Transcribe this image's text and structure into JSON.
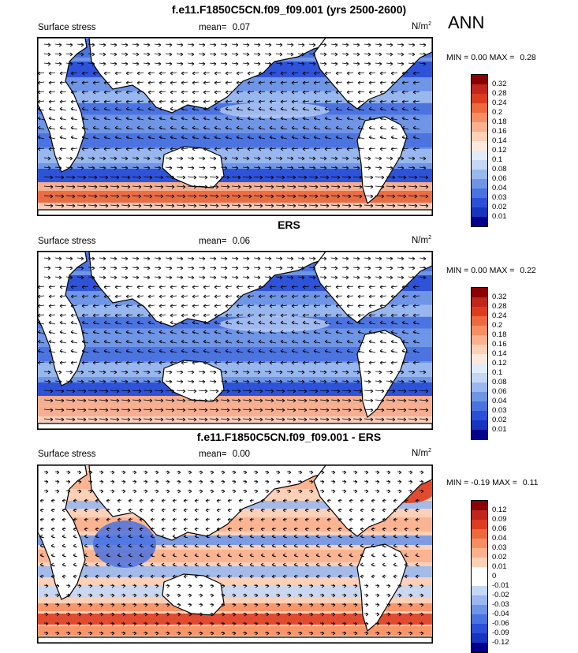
{
  "season": "ANN",
  "panels": [
    {
      "title": "f.e11.F1850C5CN.f09_f09.001 (yrs 2500-2600)",
      "left_label": "Surface stress",
      "mean_label": "mean=",
      "mean_value": "0.07",
      "units": "N/m",
      "units_sup": "2",
      "min_label": "MIN =",
      "min_value": "0.00",
      "max_label": "MAX =",
      "max_value": "0.28",
      "colorbar": "seq"
    },
    {
      "title": "ERS",
      "left_label": "Surface stress",
      "mean_label": "mean=",
      "mean_value": "0.06",
      "units": "N/m",
      "units_sup": "2",
      "min_label": "MIN =",
      "min_value": "0.00",
      "max_label": "MAX =",
      "max_value": "0.22",
      "colorbar": "seq"
    },
    {
      "title": "f.e11.F1850C5CN.f09_f09.001 - ERS",
      "left_label": "Surface stress",
      "mean_label": "mean=",
      "mean_value": "0.00",
      "units": "N/m",
      "units_sup": "2",
      "min_label": "MIN =",
      "min_value": "-0.19",
      "max_label": "MAX =",
      "max_value": "0.11",
      "colorbar": "div"
    }
  ],
  "colorbars": {
    "seq": {
      "labels": [
        "0.32",
        "0.28",
        "0.24",
        "0.2",
        "0.18",
        "0.16",
        "0.14",
        "0.12",
        "0.1",
        "0.08",
        "0.06",
        "0.04",
        "0.03",
        "0.02",
        "0.01"
      ],
      "colors": [
        "#8b0000",
        "#c0261b",
        "#de3c20",
        "#ee6a3c",
        "#f78e61",
        "#fbb08e",
        "#fdd0b8",
        "#fde9dc",
        "#e1ecfb",
        "#c4d7f5",
        "#9ab8ef",
        "#6f95e6",
        "#4a72e0",
        "#2a4fd8",
        "#1634c0",
        "#00008b"
      ]
    },
    "div": {
      "labels": [
        "0.12",
        "0.09",
        "0.06",
        "0.04",
        "0.03",
        "0.02",
        "0.01",
        "0",
        "-0.01",
        "-0.02",
        "-0.03",
        "-0.04",
        "-0.06",
        "-0.09",
        "-0.12"
      ],
      "colors": [
        "#8b0000",
        "#c0261b",
        "#de3c20",
        "#ee6a3c",
        "#f78e61",
        "#fbb08e",
        "#fdd0b8",
        "#ffffff",
        "#ffffff",
        "#c4d7f5",
        "#9ab8ef",
        "#6f95e6",
        "#4a72e0",
        "#2a4fd8",
        "#1634c0",
        "#00008b"
      ]
    }
  },
  "chart_data": [
    {
      "type": "heatmap",
      "title": "f.e11.F1850C5CN.f09_f09.001 (yrs 2500-2600)",
      "variable": "Surface stress",
      "units": "N/m2",
      "mean": 0.07,
      "min": 0.0,
      "max": 0.28,
      "levels": [
        0.01,
        0.02,
        0.03,
        0.04,
        0.06,
        0.08,
        0.1,
        0.12,
        0.14,
        0.16,
        0.18,
        0.2,
        0.24,
        0.28,
        0.32
      ],
      "overlay": "wind stress vectors",
      "features": [
        "strong westerly stress belt in Southern Ocean (~0.2-0.28)",
        "moderate trade-wind stress in tropics",
        "weak stress near equator"
      ]
    },
    {
      "type": "heatmap",
      "title": "ERS",
      "variable": "Surface stress",
      "units": "N/m2",
      "mean": 0.06,
      "min": 0.0,
      "max": 0.22,
      "levels": [
        0.01,
        0.02,
        0.03,
        0.04,
        0.06,
        0.08,
        0.1,
        0.12,
        0.14,
        0.16,
        0.18,
        0.2,
        0.24,
        0.28,
        0.32
      ],
      "overlay": "wind stress vectors",
      "features": [
        "westerly stress belt in Southern Ocean (~0.16-0.2)",
        "trade-wind stress in tropics"
      ]
    },
    {
      "type": "heatmap",
      "title": "f.e11.F1850C5CN.f09_f09.001 - ERS",
      "variable": "Surface stress",
      "units": "N/m2",
      "mean": 0.0,
      "min": -0.19,
      "max": 0.11,
      "levels": [
        -0.12,
        -0.09,
        -0.06,
        -0.04,
        -0.03,
        -0.02,
        -0.01,
        0,
        0.01,
        0.02,
        0.03,
        0.04,
        0.06,
        0.09,
        0.12
      ],
      "overlay": "difference stress vectors",
      "features": [
        "positive bias in Southern Ocean westerlies (~0.03-0.09)",
        "negative bias in Indian Ocean / Arabian Sea",
        "positive bias in North Atlantic and North Pacific storm tracks"
      ]
    }
  ]
}
